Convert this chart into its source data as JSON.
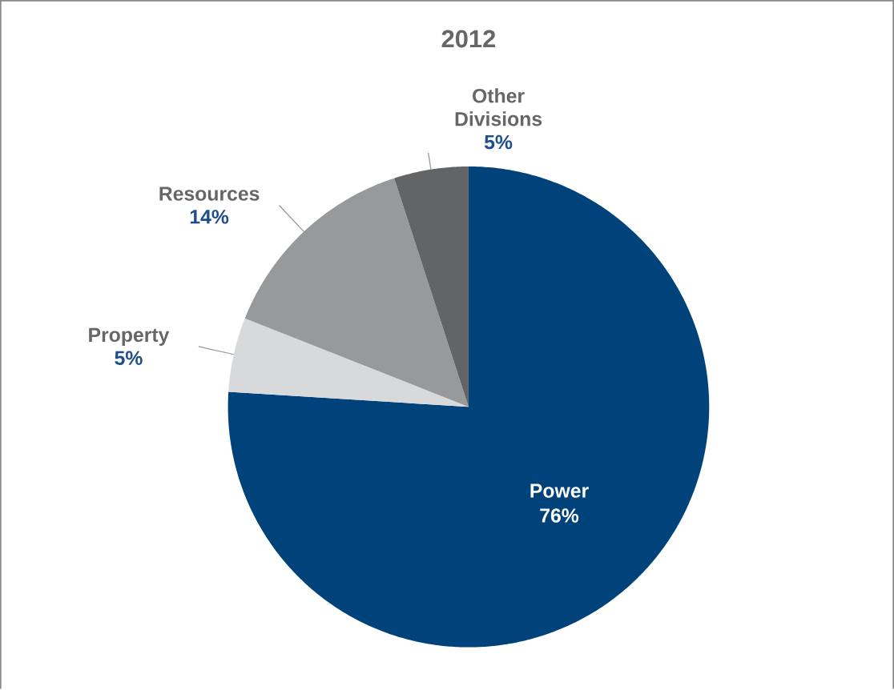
{
  "chart_data": {
    "type": "pie",
    "title": "2012",
    "categories": [
      "Power",
      "Property",
      "Resources",
      "Other Divisions"
    ],
    "values": [
      76,
      5,
      14,
      5
    ],
    "colors": [
      "#00427a",
      "#d8d9da",
      "#97999b",
      "#636466"
    ],
    "value_labels": [
      "76%",
      "5%",
      "14%",
      "5%"
    ]
  }
}
